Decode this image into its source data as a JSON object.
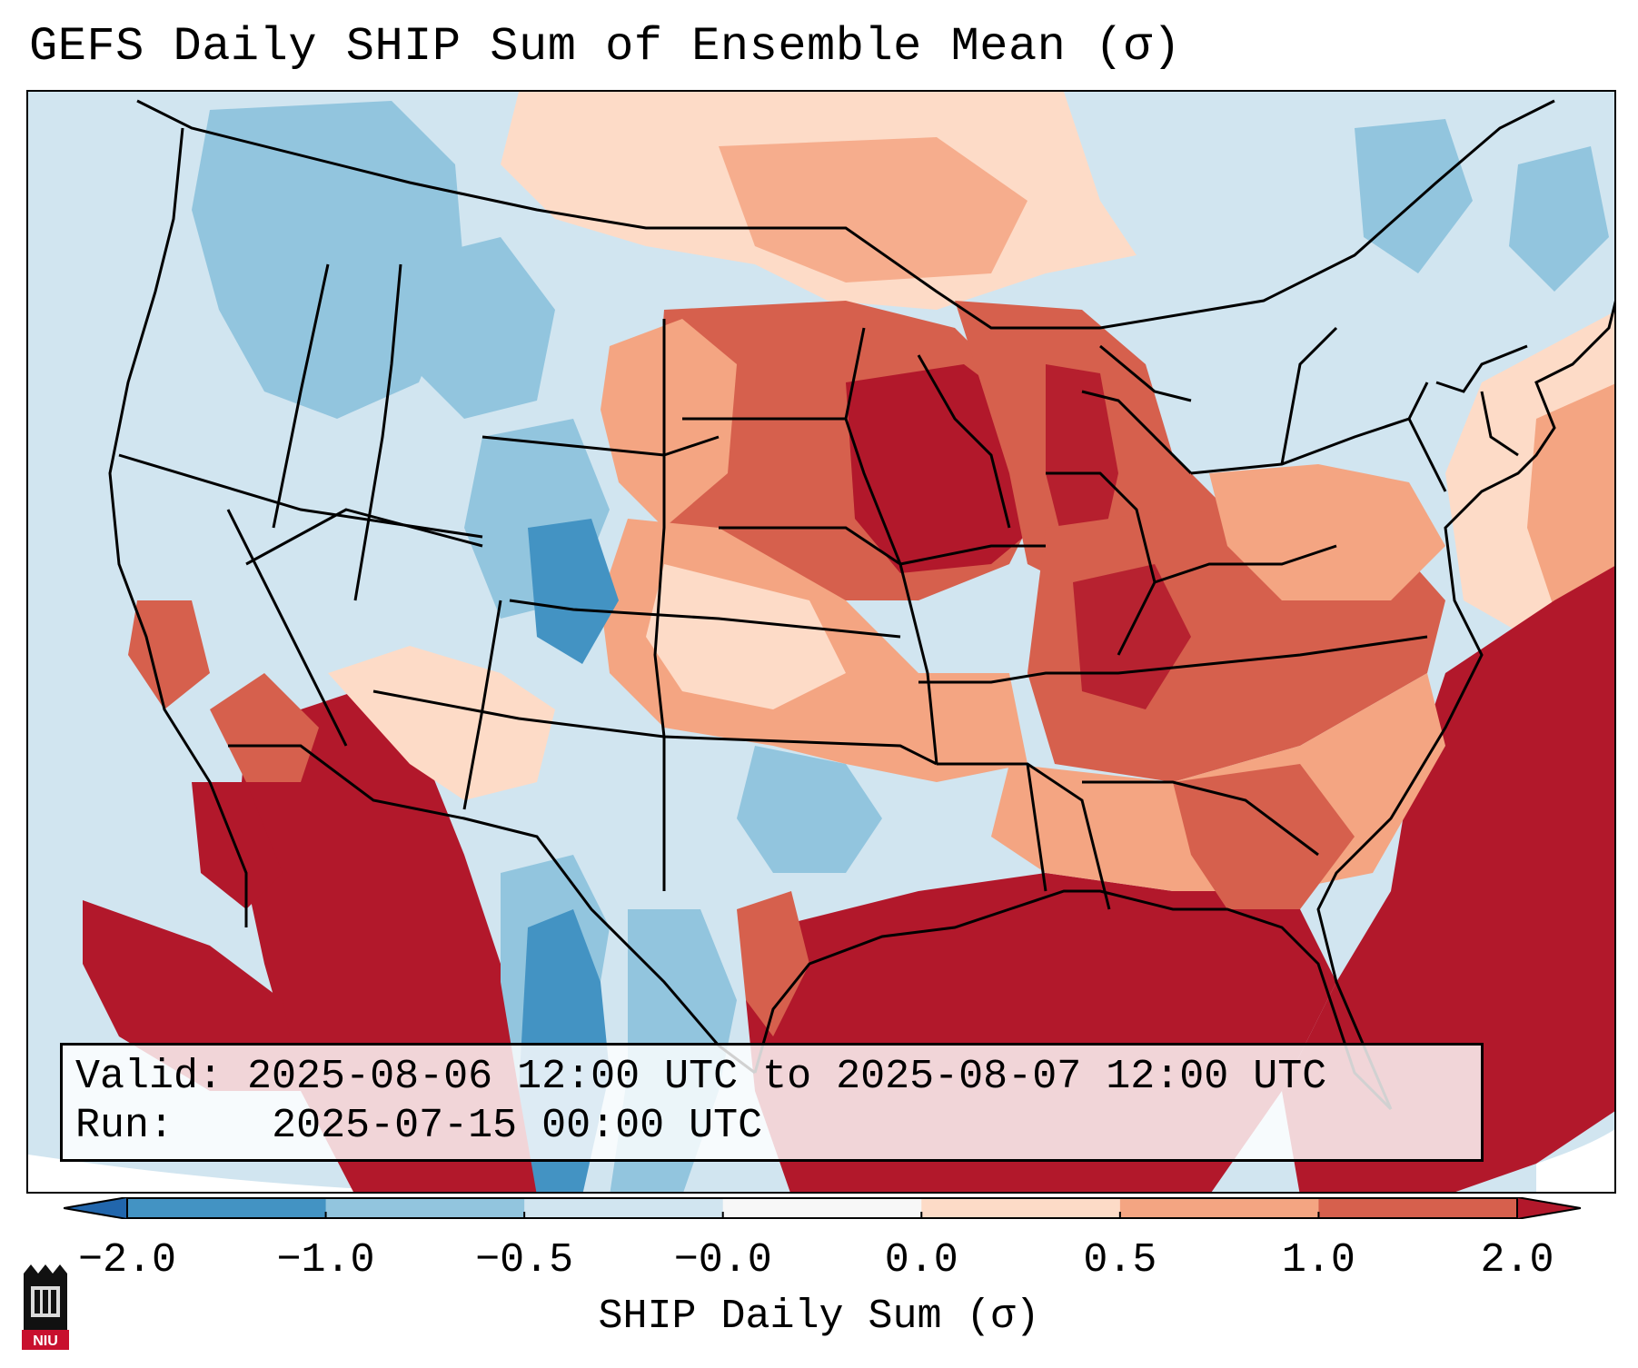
{
  "title": "GEFS Daily SHIP Sum of Ensemble Mean (σ)",
  "info": {
    "valid_label": "Valid:",
    "valid_value": "2025-08-06 12:00 UTC to 2025-08-07 12:00 UTC",
    "run_label": "Run:",
    "run_value": "2025-07-15 00:00 UTC"
  },
  "colorbar": {
    "label": "SHIP Daily Sum (σ)",
    "tick_labels": [
      "−2.0",
      "−1.0",
      "−0.5",
      "−0.0",
      "0.0",
      "0.5",
      "1.0",
      "2.0"
    ],
    "bins": [
      {
        "range": "<-2.0",
        "color": "#2166ac"
      },
      {
        "range": "-2.0 to -1.0",
        "color": "#4393c3"
      },
      {
        "range": "-1.0 to -0.5",
        "color": "#92c5de"
      },
      {
        "range": "-0.5 to -0.0",
        "color": "#d1e5f0"
      },
      {
        "range": "-0.0 to 0.0",
        "color": "#f7f7f7"
      },
      {
        "range": "0.0 to 0.5",
        "color": "#fddbc7"
      },
      {
        "range": "0.5 to 1.0",
        "color": "#f4a582"
      },
      {
        "range": "1.0 to 2.0",
        "color": "#d6604d"
      },
      {
        "range": ">2.0",
        "color": "#b2182b"
      }
    ]
  },
  "logo": {
    "text": "NIU",
    "color": "#c8102e"
  }
}
